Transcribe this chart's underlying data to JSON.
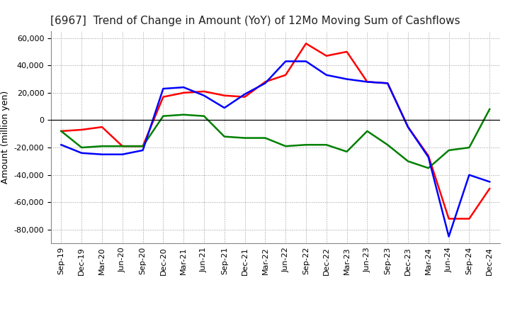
{
  "title": "[6967]  Trend of Change in Amount (YoY) of 12Mo Moving Sum of Cashflows",
  "ylabel": "Amount (million yen)",
  "labels": [
    "Sep-19",
    "Dec-19",
    "Mar-20",
    "Jun-20",
    "Sep-20",
    "Dec-20",
    "Mar-21",
    "Jun-21",
    "Sep-21",
    "Dec-21",
    "Mar-22",
    "Jun-22",
    "Sep-22",
    "Dec-22",
    "Mar-23",
    "Jun-23",
    "Sep-23",
    "Dec-23",
    "Mar-24",
    "Jun-24",
    "Sep-24",
    "Dec-24"
  ],
  "operating": [
    -8000,
    -7000,
    -5000,
    -19000,
    -19000,
    17000,
    20000,
    21000,
    18000,
    17000,
    28000,
    33000,
    56000,
    47000,
    50000,
    28000,
    27000,
    -5000,
    -26000,
    -72000,
    -72000,
    -50000
  ],
  "investing": [
    -8000,
    -20000,
    -19000,
    -19000,
    -19000,
    3000,
    4000,
    3000,
    -12000,
    -13000,
    -13000,
    -19000,
    -18000,
    -18000,
    -23000,
    -8000,
    -18000,
    -30000,
    -35000,
    -22000,
    -20000,
    8000
  ],
  "free": [
    -18000,
    -24000,
    -25000,
    -25000,
    -22000,
    23000,
    24000,
    18000,
    9000,
    19000,
    27000,
    43000,
    43000,
    33000,
    30000,
    28000,
    27000,
    -5000,
    -27000,
    -85000,
    -40000,
    -45000
  ],
  "operating_color": "#ff0000",
  "investing_color": "#008000",
  "free_color": "#0000ff",
  "ylim": [
    -90000,
    65000
  ],
  "yticks": [
    -80000,
    -60000,
    -40000,
    -20000,
    0,
    20000,
    40000,
    60000
  ],
  "background_color": "#ffffff",
  "grid_color": "#999999",
  "title_fontsize": 11,
  "axis_fontsize": 9,
  "tick_fontsize": 8,
  "legend_fontsize": 9,
  "line_width": 1.8
}
